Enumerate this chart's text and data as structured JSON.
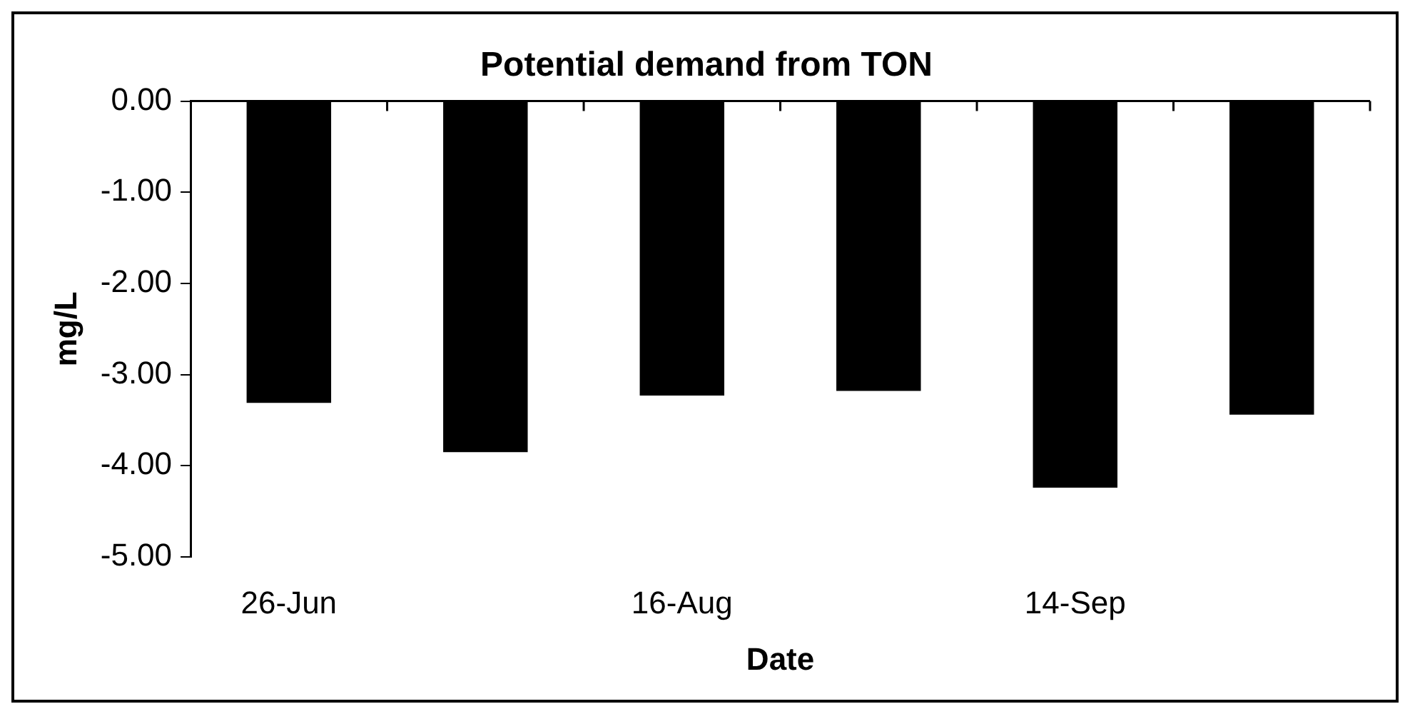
{
  "chart_data": {
    "type": "bar",
    "title": "Potential demand from TON",
    "xlabel": "Date",
    "ylabel": "mg/L",
    "categories": [
      "26-Jun",
      null,
      "16-Aug",
      null,
      "14-Sep",
      null
    ],
    "values": [
      -3.31,
      -3.85,
      -3.23,
      -3.18,
      -4.24,
      -3.44
    ],
    "color": "#000000",
    "ylim": [
      -5,
      0
    ],
    "yticks": [
      {
        "value": -5,
        "label": "-5.00"
      },
      {
        "value": -4,
        "label": "-4.00"
      },
      {
        "value": -3,
        "label": "-3.00"
      },
      {
        "value": -2,
        "label": "-2.00"
      },
      {
        "value": -1,
        "label": "-1.00"
      },
      {
        "value": 0,
        "label": "0.00"
      }
    ],
    "grid": false,
    "legend": false
  }
}
